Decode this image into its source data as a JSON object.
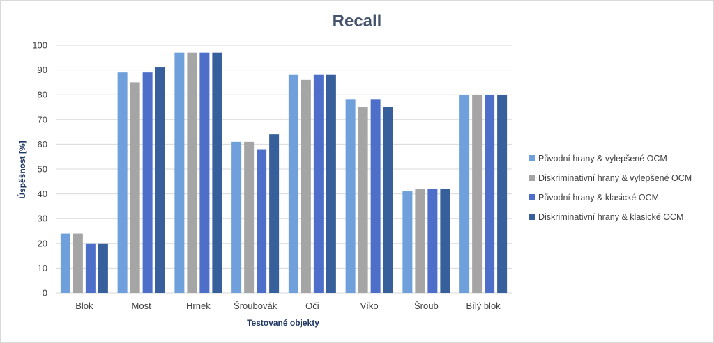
{
  "chart_data": {
    "type": "bar",
    "title": "Recall",
    "xlabel": "Testované objekty",
    "ylabel": "Úspěšnost [%]",
    "ylim": [
      0,
      100
    ],
    "yticks": [
      0,
      10,
      20,
      30,
      40,
      50,
      60,
      70,
      80,
      90,
      100
    ],
    "grid": true,
    "legend_position": "right",
    "categories": [
      "Blok",
      "Most",
      "Hrnek",
      "Šroubovák",
      "Oči",
      "Víko",
      "Šroub",
      "Bílý blok"
    ],
    "series": [
      {
        "name": "Původní hrany & vylepšené OCM",
        "color": "#6fa0dc",
        "values": [
          24,
          89,
          97,
          61,
          88,
          78,
          41,
          80
        ]
      },
      {
        "name": "Diskriminativní hrany & vylepšené OCM",
        "color": "#a5a5a5",
        "values": [
          24,
          85,
          97,
          61,
          86,
          75,
          42,
          80
        ]
      },
      {
        "name": "Původní hrany & klasické OCM",
        "color": "#4e6fc9",
        "values": [
          20,
          89,
          97,
          58,
          88,
          78,
          42,
          80
        ]
      },
      {
        "name": "Diskriminativní hrany & klasické OCM",
        "color": "#365f9c",
        "values": [
          20,
          91,
          97,
          64,
          88,
          75,
          42,
          80
        ]
      }
    ]
  }
}
